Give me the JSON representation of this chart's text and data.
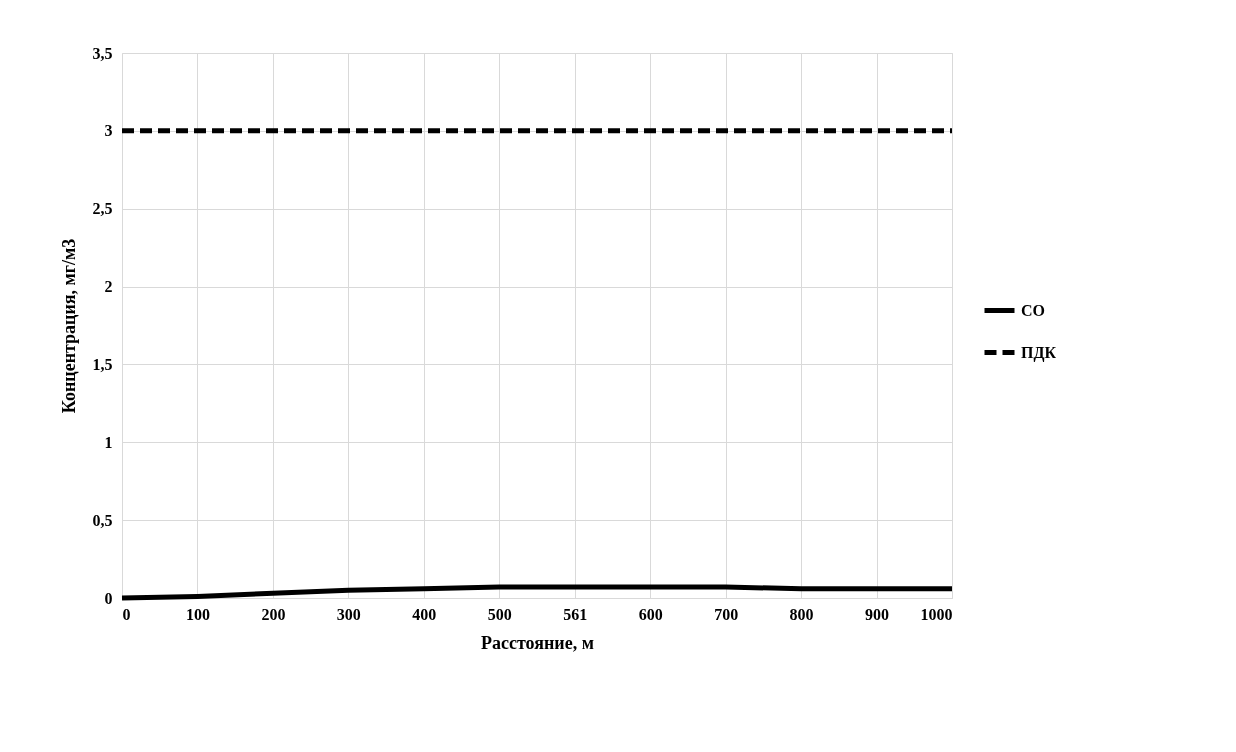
{
  "chart_data": {
    "type": "line",
    "xlabel": "Расстояние, м",
    "ylabel": "Концентрация, мг/м3",
    "categories": [
      "0",
      "100",
      "200",
      "300",
      "400",
      "500",
      "561",
      "600",
      "700",
      "800",
      "900",
      "1000"
    ],
    "series": [
      {
        "name": "CO",
        "color": "#000000",
        "line_style": "solid",
        "values": [
          0,
          0.01,
          0.03,
          0.05,
          0.06,
          0.07,
          0.07,
          0.07,
          0.07,
          0.06,
          0.06,
          0.06
        ]
      },
      {
        "name": "ПДК",
        "color": "#000000",
        "line_style": "dashed",
        "values": [
          3,
          3,
          3,
          3,
          3,
          3,
          3,
          3,
          3,
          3,
          3,
          3
        ]
      }
    ],
    "ylim": [
      0,
      3.5
    ],
    "yticks": [
      0,
      {
        "value": 0.5,
        "label": "0,5"
      },
      1,
      {
        "value": 1.5,
        "label": "1,5"
      },
      2,
      {
        "value": 2.5,
        "label": "2,5"
      },
      3,
      {
        "value": 3.5,
        "label": "3,5"
      }
    ],
    "grid": true,
    "legend": "right",
    "marker": "none"
  }
}
